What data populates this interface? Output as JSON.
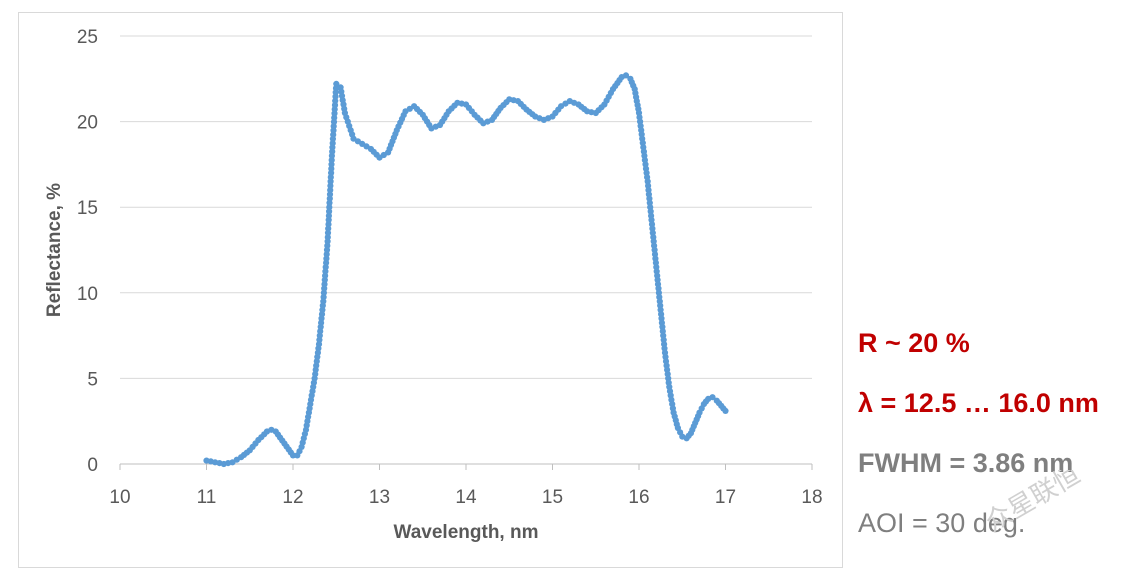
{
  "chart_data": {
    "type": "line",
    "xlabel": "Wavelength, nm",
    "ylabel": "Reflectance, %",
    "xlim": [
      10,
      18
    ],
    "ylim": [
      0,
      25
    ],
    "x_ticks": [
      10,
      11,
      12,
      13,
      14,
      15,
      16,
      17,
      18
    ],
    "y_ticks": [
      0,
      5,
      10,
      15,
      20,
      25
    ],
    "grid": "horizontal",
    "legend": "none",
    "markers": true,
    "series_color": "#5b9bd5",
    "series": [
      {
        "points": [
          [
            11.0,
            0.2
          ],
          [
            11.1,
            0.1
          ],
          [
            11.2,
            0.0
          ],
          [
            11.3,
            0.1
          ],
          [
            11.4,
            0.4
          ],
          [
            11.5,
            0.8
          ],
          [
            11.6,
            1.4
          ],
          [
            11.7,
            1.9
          ],
          [
            11.75,
            2.0
          ],
          [
            11.8,
            1.9
          ],
          [
            11.9,
            1.2
          ],
          [
            12.0,
            0.5
          ],
          [
            12.05,
            0.5
          ],
          [
            12.1,
            1.0
          ],
          [
            12.15,
            2.0
          ],
          [
            12.2,
            3.5
          ],
          [
            12.25,
            5.0
          ],
          [
            12.3,
            7.0
          ],
          [
            12.35,
            9.5
          ],
          [
            12.4,
            13.0
          ],
          [
            12.45,
            18.0
          ],
          [
            12.5,
            22.2
          ],
          [
            12.55,
            22.0
          ],
          [
            12.6,
            20.5
          ],
          [
            12.7,
            19.0
          ],
          [
            12.8,
            18.7
          ],
          [
            12.9,
            18.4
          ],
          [
            13.0,
            17.9
          ],
          [
            13.1,
            18.2
          ],
          [
            13.2,
            19.5
          ],
          [
            13.3,
            20.6
          ],
          [
            13.4,
            20.9
          ],
          [
            13.5,
            20.4
          ],
          [
            13.6,
            19.6
          ],
          [
            13.7,
            19.8
          ],
          [
            13.8,
            20.6
          ],
          [
            13.9,
            21.1
          ],
          [
            14.0,
            21.0
          ],
          [
            14.1,
            20.4
          ],
          [
            14.2,
            19.9
          ],
          [
            14.3,
            20.1
          ],
          [
            14.4,
            20.8
          ],
          [
            14.5,
            21.3
          ],
          [
            14.6,
            21.2
          ],
          [
            14.7,
            20.7
          ],
          [
            14.8,
            20.3
          ],
          [
            14.9,
            20.1
          ],
          [
            15.0,
            20.3
          ],
          [
            15.1,
            20.9
          ],
          [
            15.2,
            21.2
          ],
          [
            15.3,
            21.0
          ],
          [
            15.4,
            20.6
          ],
          [
            15.5,
            20.5
          ],
          [
            15.6,
            21.0
          ],
          [
            15.7,
            21.9
          ],
          [
            15.8,
            22.6
          ],
          [
            15.85,
            22.7
          ],
          [
            15.9,
            22.5
          ],
          [
            15.95,
            21.9
          ],
          [
            16.0,
            20.5
          ],
          [
            16.05,
            18.5
          ],
          [
            16.1,
            16.5
          ],
          [
            16.15,
            14.0
          ],
          [
            16.2,
            11.5
          ],
          [
            16.25,
            9.0
          ],
          [
            16.3,
            6.5
          ],
          [
            16.35,
            4.5
          ],
          [
            16.4,
            3.0
          ],
          [
            16.45,
            2.1
          ],
          [
            16.5,
            1.6
          ],
          [
            16.55,
            1.5
          ],
          [
            16.6,
            1.8
          ],
          [
            16.65,
            2.4
          ],
          [
            16.7,
            3.0
          ],
          [
            16.75,
            3.5
          ],
          [
            16.8,
            3.8
          ],
          [
            16.85,
            3.9
          ],
          [
            16.9,
            3.7
          ],
          [
            16.95,
            3.4
          ],
          [
            17.0,
            3.1
          ]
        ]
      }
    ]
  },
  "annotations": {
    "r_text": "R ~ 20 %",
    "lambda_text": "λ = 12.5 … 16.0 nm",
    "fwhm_text": "FWHM = 3.86 nm",
    "aoi_text": "AOI = 30 deg."
  },
  "watermark": "众星联恒"
}
